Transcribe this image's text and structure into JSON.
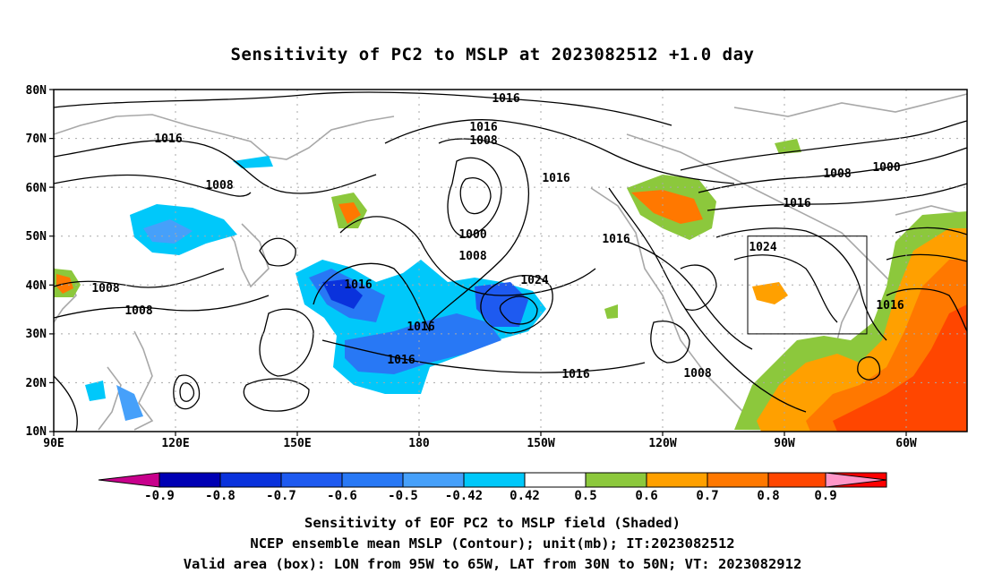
{
  "title": "Sensitivity of PC2 to MSLP at 2023082512 +1.0 day",
  "lat_labels": [
    "80N",
    "70N",
    "60N",
    "50N",
    "40N",
    "30N",
    "20N",
    "10N"
  ],
  "lon_labels": [
    "90E",
    "120E",
    "150E",
    "180",
    "150W",
    "120W",
    "90W",
    "60W"
  ],
  "contour_labels": [
    "1016",
    "1016",
    "1008",
    "1016",
    "1008",
    "1000",
    "1008",
    "1016",
    "1016",
    "1008",
    "1000",
    "1016",
    "1016",
    "1024",
    "1024",
    "1016",
    "1016",
    "1016",
    "1008",
    "1008",
    "1008",
    "1016"
  ],
  "colorbar": {
    "colors": [
      "#c8008c",
      "#0000b4",
      "#0a32dc",
      "#1e5af0",
      "#2878f5",
      "#46a0fa",
      "#00c8fa",
      "#ffffff",
      "#8cc83c",
      "#ffa000",
      "#ff7800",
      "#ff4600",
      "#ff0000",
      "#ff96c8"
    ],
    "labels": [
      "-0.9",
      "-0.8",
      "-0.7",
      "-0.6",
      "-0.5",
      "-0.42",
      "0.42",
      "0.5",
      "0.6",
      "0.7",
      "0.8",
      "0.9"
    ]
  },
  "captions": [
    "Sensitivity of EOF PC2 to MSLP field (Shaded)",
    "NCEP ensemble mean MSLP (Contour); unit(mb); IT:2023082512",
    "Valid area (box): LON from 95W to 65W, LAT from 30N to 50N; VT: 2023082912"
  ]
}
